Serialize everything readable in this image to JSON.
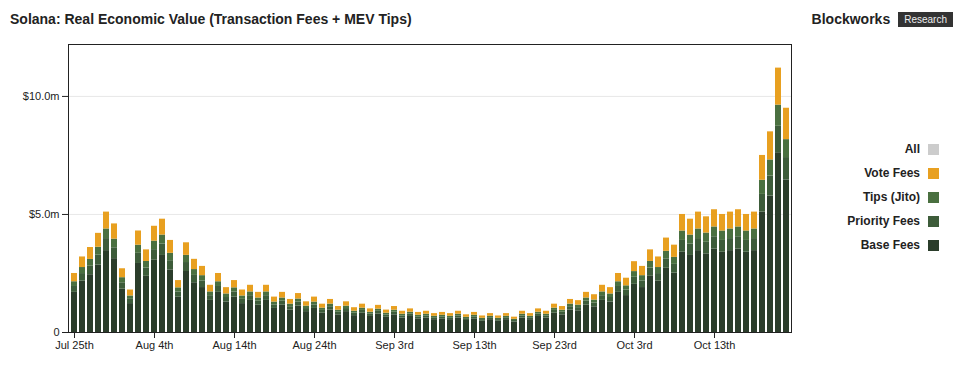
{
  "chart_data": {
    "type": "bar",
    "title": "Solana: Real Economic Value (Transaction Fees + MEV Tips)",
    "annotations": [
      {
        "text": "All",
        "color": "#cccccc"
      },
      {
        "text": "Blockworks"
      },
      {
        "text": "Research"
      }
    ],
    "categories": [
      "Jul 25th",
      null,
      null,
      null,
      null,
      null,
      null,
      null,
      null,
      null,
      "Aug 4th",
      null,
      null,
      null,
      null,
      null,
      null,
      null,
      null,
      null,
      "Aug 14th",
      null,
      null,
      null,
      null,
      null,
      null,
      null,
      null,
      null,
      "Aug 24th",
      null,
      null,
      null,
      null,
      null,
      null,
      null,
      null,
      null,
      "Sep 3rd",
      null,
      null,
      null,
      null,
      null,
      null,
      null,
      null,
      null,
      "Sep 13th",
      null,
      null,
      null,
      null,
      null,
      null,
      null,
      null,
      null,
      "Sep 23rd",
      null,
      null,
      null,
      null,
      null,
      null,
      null,
      null,
      null,
      "Oct 3rd",
      null,
      null,
      null,
      null,
      null,
      null,
      null,
      null,
      null,
      "Oct 13th",
      null,
      null,
      null,
      null,
      null,
      null,
      null,
      null,
      null
    ],
    "series": [
      {
        "name": "Base Fees",
        "color": "#2b3d2b",
        "values": [
          1700000,
          2176000,
          2448000,
          2856000,
          3468000,
          3128000,
          1836000,
          1224000,
          2924000,
          2380000,
          3060000,
          3264000,
          2652000,
          1496000,
          2584000,
          2108000,
          1904000,
          1360000,
          1700000,
          1292000,
          1496000,
          1224000,
          1360000,
          1156000,
          1360000,
          1020000,
          1156000,
          952000,
          1122000,
          884000,
          1020000,
          816000,
          952000,
          748000,
          884000,
          714000,
          816000,
          680000,
          782000,
          646000,
          748000,
          612000,
          680000,
          578000,
          612000,
          544000,
          578000,
          544000,
          612000,
          510000,
          578000,
          476000,
          544000,
          476000,
          544000,
          442000,
          612000,
          544000,
          680000,
          612000,
          816000,
          748000,
          952000,
          918000,
          1156000,
          1088000,
          1360000,
          1292000,
          1700000,
          1564000,
          2040000,
          1904000,
          2380000,
          2176000,
          2720000,
          2516000,
          3400000,
          3264000,
          3468000,
          3332000,
          3536000,
          3400000,
          3468000,
          3536000,
          3400000,
          3468000,
          5100000,
          5780000,
          7616000,
          6460000
        ]
      },
      {
        "name": "Priority Fees",
        "color": "#3d5c3a",
        "values": [
          250000,
          320000,
          360000,
          420000,
          510000,
          460000,
          270000,
          180000,
          430000,
          350000,
          450000,
          480000,
          390000,
          220000,
          380000,
          310000,
          280000,
          200000,
          250000,
          190000,
          220000,
          180000,
          200000,
          170000,
          200000,
          150000,
          170000,
          140000,
          165000,
          130000,
          150000,
          120000,
          140000,
          110000,
          130000,
          105000,
          120000,
          100000,
          115000,
          95000,
          110000,
          90000,
          100000,
          85000,
          90000,
          80000,
          85000,
          80000,
          90000,
          75000,
          85000,
          70000,
          80000,
          70000,
          80000,
          65000,
          90000,
          80000,
          100000,
          90000,
          120000,
          110000,
          140000,
          135000,
          170000,
          160000,
          200000,
          190000,
          250000,
          230000,
          300000,
          280000,
          350000,
          320000,
          400000,
          370000,
          500000,
          480000,
          510000,
          490000,
          520000,
          500000,
          510000,
          520000,
          500000,
          510000,
          750000,
          850000,
          1120000,
          950000
        ]
      },
      {
        "name": "Tips (Jito)",
        "color": "#4a7040",
        "values": [
          200000,
          256000,
          288000,
          336000,
          408000,
          368000,
          216000,
          144000,
          344000,
          280000,
          360000,
          384000,
          312000,
          176000,
          304000,
          248000,
          224000,
          160000,
          200000,
          152000,
          176000,
          144000,
          160000,
          136000,
          160000,
          120000,
          136000,
          112000,
          132000,
          104000,
          120000,
          96000,
          112000,
          88000,
          104000,
          84000,
          96000,
          80000,
          92000,
          76000,
          88000,
          72000,
          80000,
          68000,
          72000,
          64000,
          68000,
          64000,
          72000,
          60000,
          68000,
          56000,
          64000,
          56000,
          64000,
          52000,
          72000,
          64000,
          80000,
          72000,
          96000,
          88000,
          112000,
          108000,
          136000,
          128000,
          160000,
          152000,
          200000,
          184000,
          240000,
          224000,
          280000,
          256000,
          320000,
          296000,
          400000,
          384000,
          408000,
          392000,
          416000,
          400000,
          408000,
          416000,
          400000,
          408000,
          600000,
          680000,
          896000,
          760000
        ]
      },
      {
        "name": "Vote Fees",
        "color": "#e8a020",
        "values": [
          350000,
          448000,
          504000,
          588000,
          714000,
          644000,
          378000,
          252000,
          602000,
          490000,
          630000,
          672000,
          546000,
          308000,
          532000,
          434000,
          392000,
          280000,
          350000,
          266000,
          308000,
          252000,
          280000,
          238000,
          280000,
          210000,
          238000,
          196000,
          231000,
          182000,
          210000,
          168000,
          196000,
          154000,
          182000,
          147000,
          168000,
          140000,
          161000,
          133000,
          154000,
          126000,
          140000,
          119000,
          126000,
          112000,
          119000,
          112000,
          126000,
          105000,
          119000,
          98000,
          112000,
          98000,
          112000,
          91000,
          126000,
          112000,
          140000,
          126000,
          168000,
          154000,
          196000,
          189000,
          238000,
          224000,
          280000,
          266000,
          350000,
          322000,
          420000,
          392000,
          490000,
          448000,
          560000,
          518000,
          700000,
          672000,
          714000,
          686000,
          728000,
          700000,
          714000,
          728000,
          700000,
          714000,
          1050000,
          1190000,
          1568000,
          1330000
        ]
      }
    ],
    "stacked": true,
    "ylim": [
      0,
      12200000
    ],
    "yticks": [
      0,
      {
        "value": 5000000,
        "label": "$5.0m"
      },
      {
        "value": 10000000,
        "label": "$10.0m"
      }
    ],
    "grid": true,
    "legend": "right"
  }
}
